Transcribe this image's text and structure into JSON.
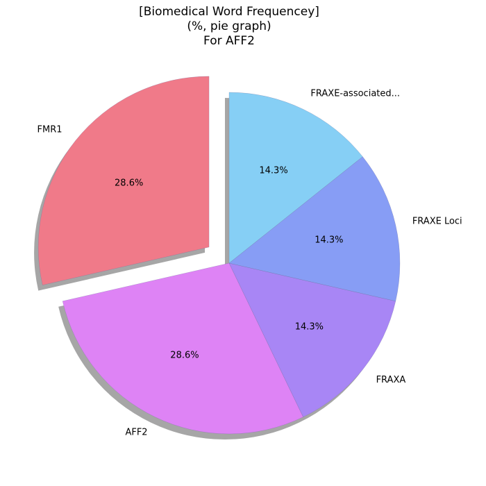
{
  "chart_data": {
    "type": "pie",
    "title_lines": [
      "[Biomedical Word Frequencey]",
      "(%, pie graph)",
      "For AFF2"
    ],
    "slices": [
      {
        "label": "FMR1",
        "value": 28.6,
        "pct_label": "28.6%",
        "color": "#f07a89",
        "exploded": true
      },
      {
        "label": "AFF2",
        "value": 28.6,
        "pct_label": "28.6%",
        "color": "#de83f5",
        "exploded": false
      },
      {
        "label": "FRAXA",
        "value": 14.3,
        "pct_label": "14.3%",
        "color": "#a886f5",
        "exploded": false
      },
      {
        "label": "FRAXE Loci",
        "value": 14.3,
        "pct_label": "14.3%",
        "color": "#879df5",
        "exploded": false
      },
      {
        "label": "FRAXE-associated...",
        "value": 14.3,
        "pct_label": "14.3%",
        "color": "#86cff5",
        "exploded": false
      }
    ],
    "start_angle_deg": 90,
    "direction": "counterclockwise",
    "shadow": true
  }
}
